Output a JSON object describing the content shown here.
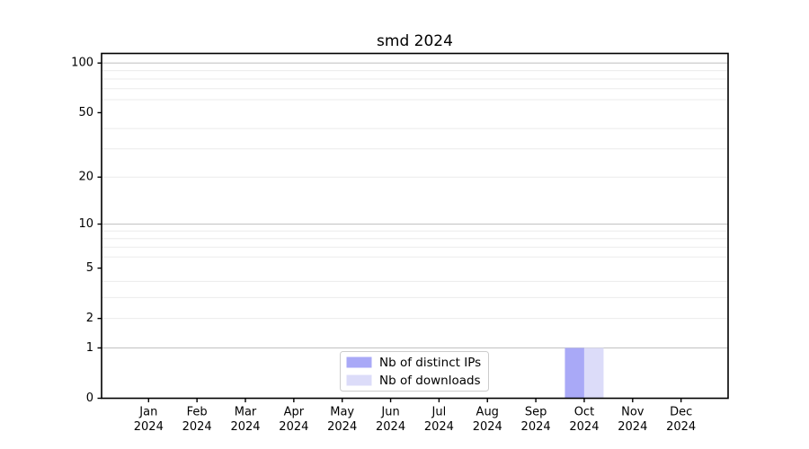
{
  "chart_data": {
    "type": "bar",
    "title": "smd 2024",
    "categories": [
      "Jan 2024",
      "Feb 2024",
      "Mar 2024",
      "Apr 2024",
      "May 2024",
      "Jun 2024",
      "Jul 2024",
      "Aug 2024",
      "Sep 2024",
      "Oct 2024",
      "Nov 2024",
      "Dec 2024"
    ],
    "series": [
      {
        "name": "Nb of distinct IPs",
        "color": "#a9a9f7",
        "values": [
          0,
          0,
          0,
          0,
          0,
          0,
          0,
          0,
          0,
          1,
          0,
          0
        ]
      },
      {
        "name": "Nb of downloads",
        "color": "#dcdcf9",
        "values": [
          0,
          0,
          0,
          0,
          0,
          0,
          0,
          0,
          0,
          1,
          0,
          0
        ]
      }
    ],
    "yticks": [
      0,
      1,
      2,
      5,
      10,
      20,
      50,
      100
    ],
    "yminorticks": [
      2,
      3,
      4,
      6,
      7,
      8,
      9,
      20,
      30,
      40,
      60,
      70,
      80,
      90
    ],
    "ymajorgrid": [
      1,
      10,
      100
    ],
    "ylim": [
      0,
      100
    ],
    "yscale": "log1p",
    "grid": true,
    "xlabel": "",
    "ylabel": "",
    "legend_position": "lower center"
  },
  "style": {
    "background": "#ffffff",
    "spine_color": "#000000",
    "tick_color": "#000000",
    "grid_major_color": "#c6c6c6",
    "grid_minor_color": "#ebebeb",
    "legend_border_color": "#cccccc",
    "legend_background": "#ffffff",
    "text_color": "#000000"
  }
}
